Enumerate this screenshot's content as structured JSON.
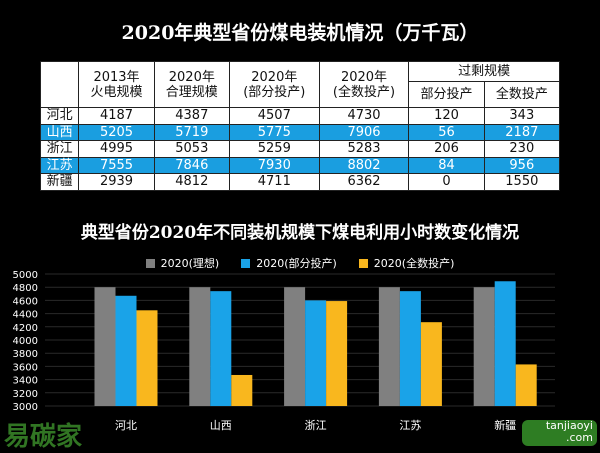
{
  "table": {
    "title": "2020年典型省份煤电装机情况（万千瓦）",
    "headers": [
      [
        "2013年",
        "火电规模"
      ],
      [
        "2020年",
        "合理规模"
      ],
      [
        "2020年",
        "(部分投产)"
      ],
      [
        "2020年",
        "(全数投产)"
      ]
    ],
    "group_header": "过剩规模",
    "sub_headers": [
      "部分投产",
      "全数投产"
    ],
    "rows": [
      {
        "province": "河北",
        "values": [
          "4187",
          "4387",
          "4507",
          "4730",
          "120",
          "343"
        ]
      },
      {
        "province": "山西",
        "values": [
          "5205",
          "5719",
          "5775",
          "7906",
          "56",
          "2187"
        ]
      },
      {
        "province": "浙江",
        "values": [
          "4995",
          "5053",
          "5259",
          "5283",
          "206",
          "230"
        ]
      },
      {
        "province": "江苏",
        "values": [
          "7555",
          "7846",
          "7930",
          "8802",
          "84",
          "956"
        ]
      },
      {
        "province": "新疆",
        "values": [
          "2939",
          "4812",
          "4711",
          "6362",
          "0",
          "1550"
        ]
      }
    ]
  },
  "chart_data": {
    "type": "bar",
    "title": "典型省份2020年不同装机规模下煤电利用小时数变化情况",
    "categories": [
      "河北",
      "山西",
      "浙江",
      "江苏",
      "新疆"
    ],
    "series": [
      {
        "name": "2020(理想)",
        "color": "#808080",
        "values": [
          4800,
          4800,
          4800,
          4800,
          4800
        ]
      },
      {
        "name": "2020(部分投产)",
        "color": "#1aa3e8",
        "values": [
          4670,
          4740,
          4600,
          4740,
          4890
        ]
      },
      {
        "name": "2020(全数投产)",
        "color": "#f9b71e",
        "values": [
          4450,
          3470,
          4590,
          4270,
          3630
        ]
      }
    ],
    "ylim": [
      3000,
      5000
    ],
    "yticks": [
      3000,
      3200,
      3400,
      3600,
      3800,
      4000,
      4200,
      4400,
      4600,
      4800,
      5000
    ],
    "legend": "top",
    "grid": true
  },
  "watermark": {
    "brand": "易碳家",
    "site": "tanjiaoyi",
    "domain": ".com"
  }
}
